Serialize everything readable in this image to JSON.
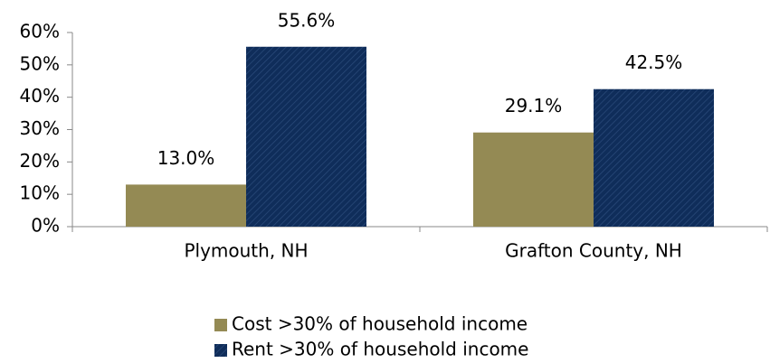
{
  "chart_data": {
    "type": "bar",
    "categories": [
      "Plymouth, NH",
      "Grafton County, NH"
    ],
    "series": [
      {
        "name": "Cost >30% of household income",
        "color": "#948a54",
        "values": [
          13.0,
          29.1
        ],
        "value_labels": [
          "13.0%",
          "29.1%"
        ]
      },
      {
        "name": "Rent >30% of household income",
        "color": "#0f2d5a",
        "values": [
          55.6,
          42.5
        ],
        "value_labels": [
          "55.6%",
          "42.5%"
        ],
        "hatch": true
      }
    ],
    "ylim": [
      0,
      60
    ],
    "yticks": [
      {
        "value": 0,
        "label": "0%"
      },
      {
        "value": 10,
        "label": "10%"
      },
      {
        "value": 20,
        "label": "20%"
      },
      {
        "value": 30,
        "label": "30%"
      },
      {
        "value": 40,
        "label": "40%"
      },
      {
        "value": 50,
        "label": "50%"
      },
      {
        "value": 60,
        "label": "60%"
      }
    ],
    "grid": false,
    "legend": "bottom"
  }
}
